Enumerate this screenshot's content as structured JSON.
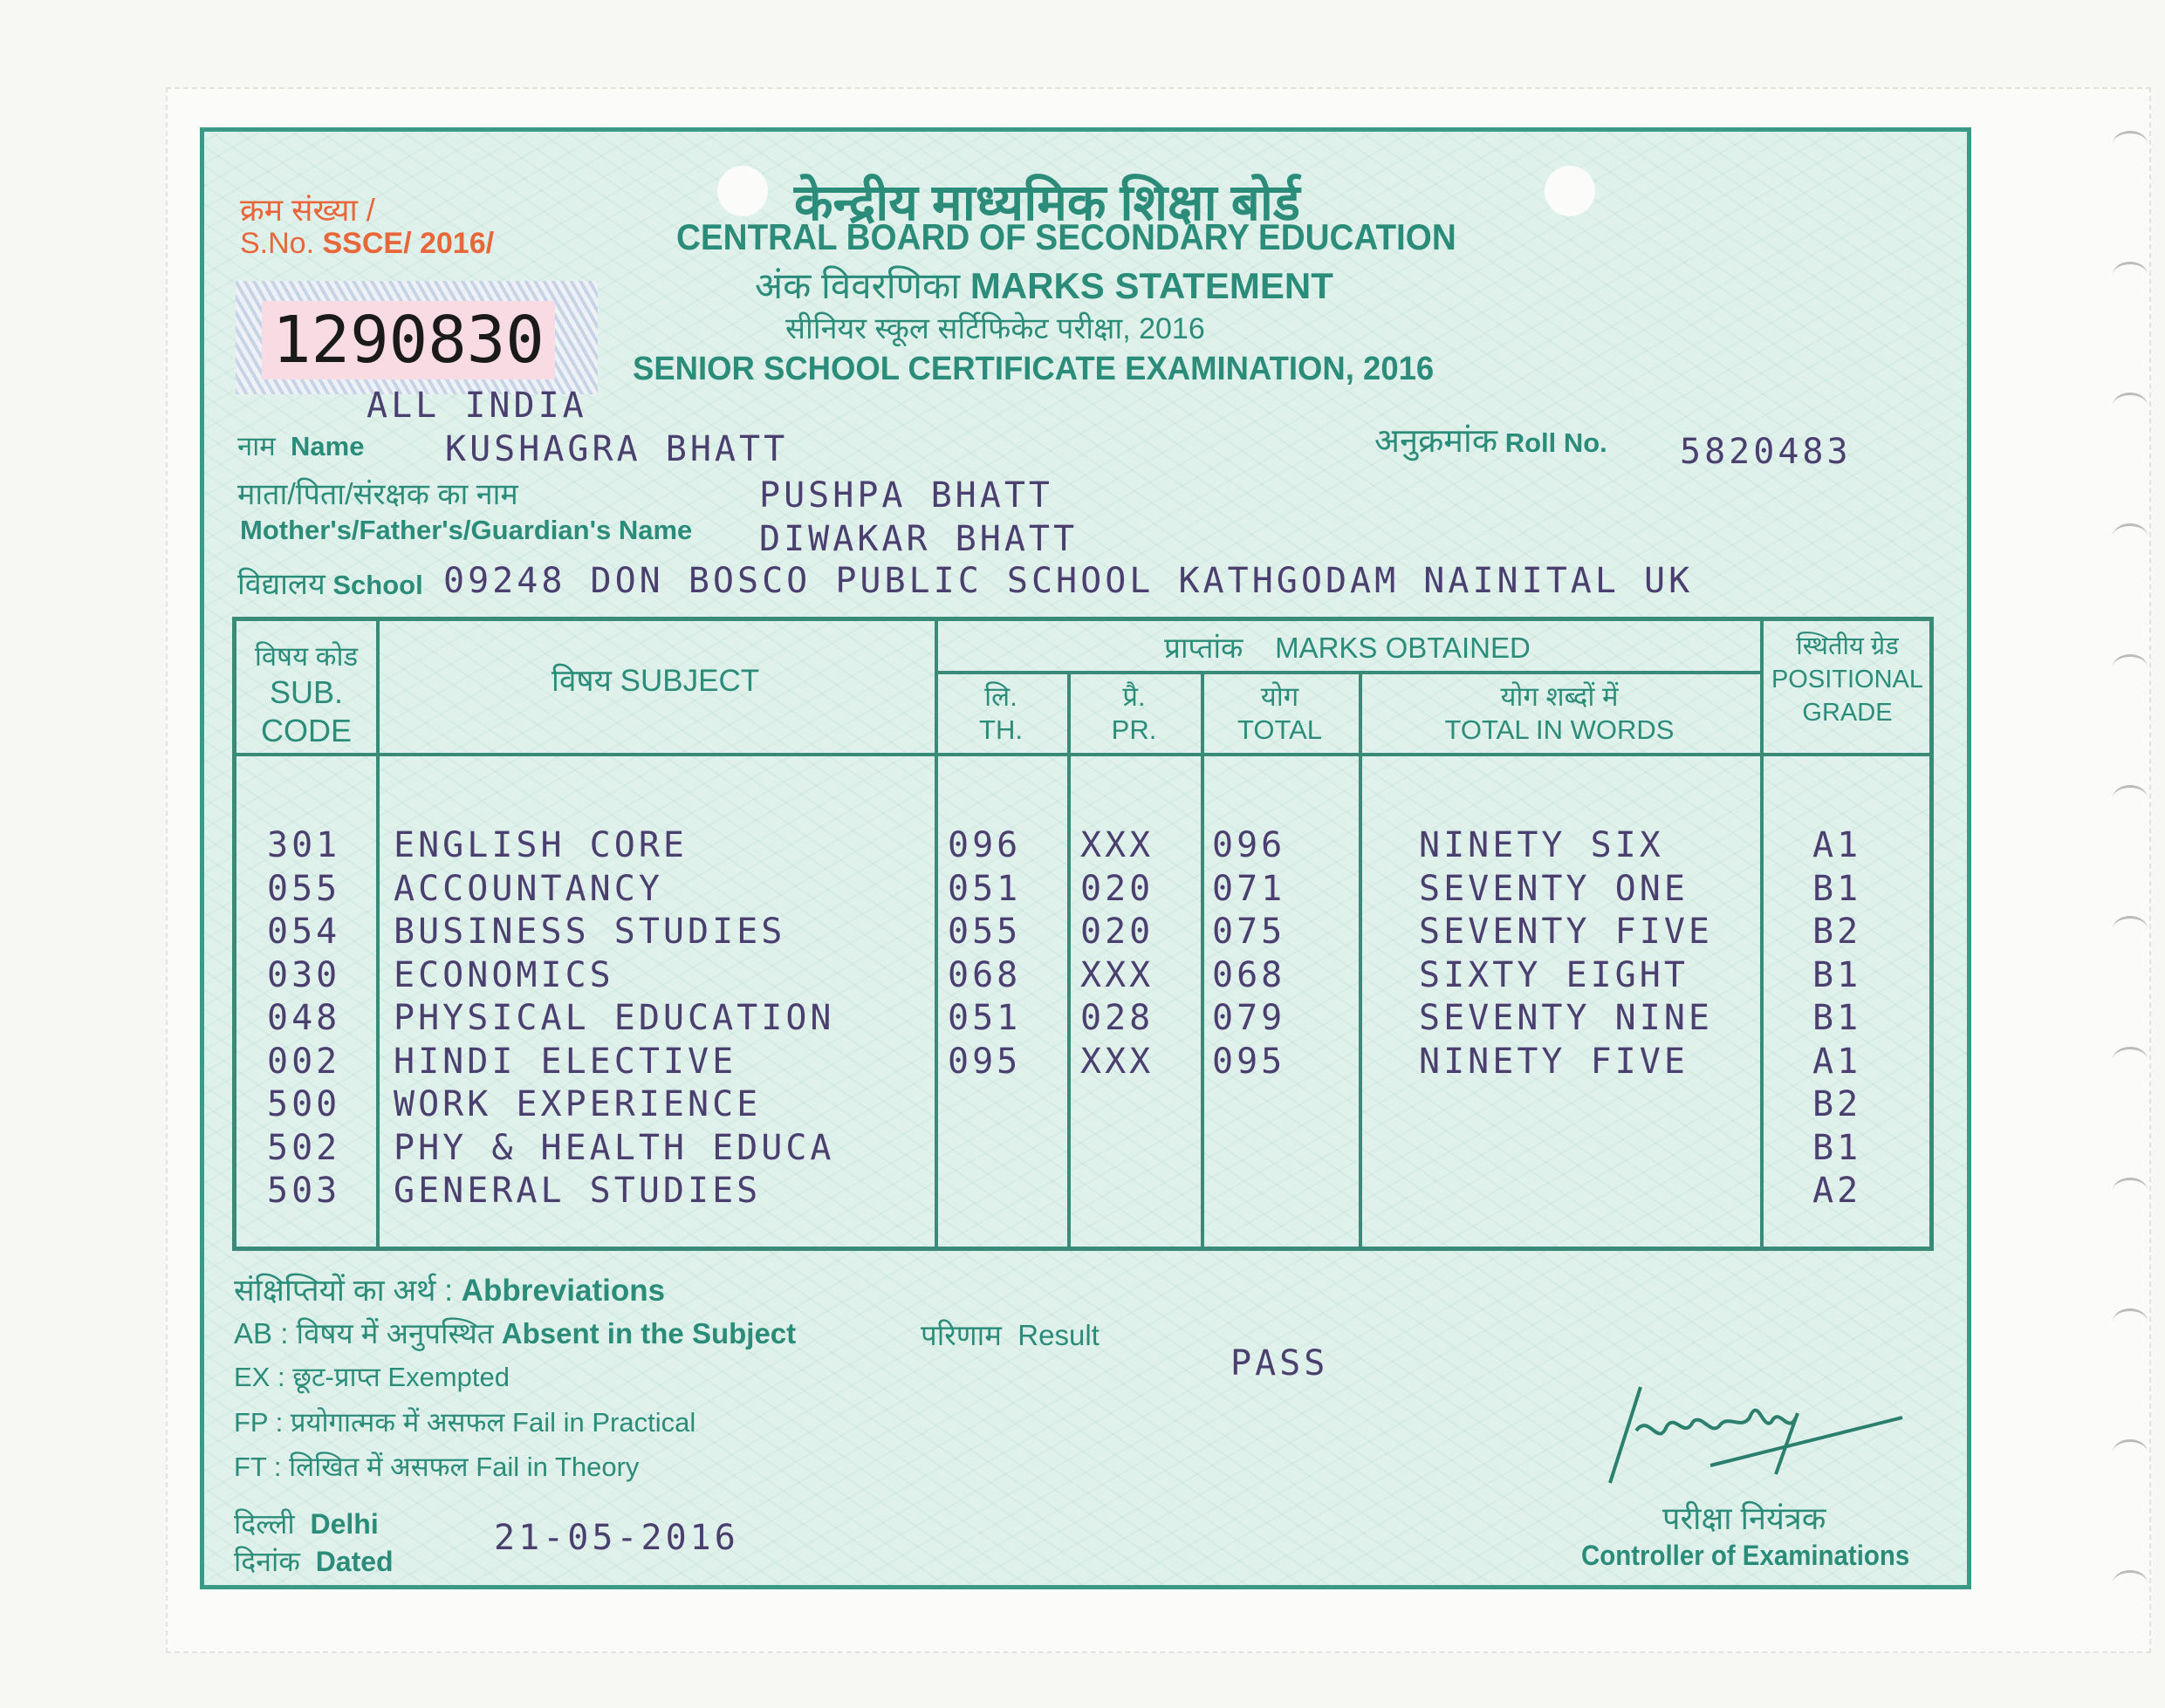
{
  "serial": {
    "label_hi": "क्रम संख्या /",
    "label_en": "S.No.",
    "prefix": "SSCE/ 2016/",
    "number": "1290830",
    "region": "ALL INDIA"
  },
  "header": {
    "board_hi": "केन्द्रीय माध्यमिक शिक्षा बोर्ड",
    "board_en": "CENTRAL BOARD OF SECONDARY EDUCATION",
    "title_hi": "अंक विवरणिका",
    "title_en": "MARKS STATEMENT",
    "exam_hi": "सीनियर स्कूल सर्टिफिकेट परीक्षा, 2016",
    "exam_en": "SENIOR SCHOOL CERTIFICATE EXAMINATION, 2016"
  },
  "student": {
    "name_label_hi": "नाम",
    "name_label_en": "Name",
    "name": "KUSHAGRA BHATT",
    "roll_label_hi": "अनुक्रमांक",
    "roll_label_en": "Roll No.",
    "roll": "5820483",
    "parent_label_hi": "माता/पिता/संरक्षक का नाम",
    "parent_label_en": "Mother's/Father's/Guardian's Name",
    "mother": "PUSHPA BHATT",
    "father": "DIWAKAR BHATT",
    "school_label_hi": "विद्यालय",
    "school_label_en": "School",
    "school": "09248 DON BOSCO PUBLIC SCHOOL KATHGODAM NAINITAL UK"
  },
  "table": {
    "headers": {
      "code_hi": "विषय कोड",
      "code_en1": "SUB.",
      "code_en2": "CODE",
      "subject": "विषय SUBJECT",
      "marks_hi": "प्राप्तांक",
      "marks_en": "MARKS OBTAINED",
      "th_hi": "लि.",
      "th_en": "TH.",
      "pr_hi": "प्रै.",
      "pr_en": "PR.",
      "total_hi": "योग",
      "total_en": "TOTAL",
      "words_hi": "योग शब्दों में",
      "words_en": "TOTAL IN WORDS",
      "grade_hi": "स्थितीय ग्रेड",
      "grade_en1": "POSITIONAL",
      "grade_en2": "GRADE"
    },
    "rows": [
      {
        "code": "301",
        "subject": "ENGLISH CORE",
        "th": "096",
        "pr": "XXX",
        "total": "096",
        "words": "NINETY SIX",
        "grade": "A1"
      },
      {
        "code": "055",
        "subject": "ACCOUNTANCY",
        "th": "051",
        "pr": "020",
        "total": "071",
        "words": "SEVENTY ONE",
        "grade": "B1"
      },
      {
        "code": "054",
        "subject": "BUSINESS STUDIES",
        "th": "055",
        "pr": "020",
        "total": "075",
        "words": "SEVENTY FIVE",
        "grade": "B2"
      },
      {
        "code": "030",
        "subject": "ECONOMICS",
        "th": "068",
        "pr": "XXX",
        "total": "068",
        "words": "SIXTY EIGHT",
        "grade": "B1"
      },
      {
        "code": "048",
        "subject": "PHYSICAL EDUCATION",
        "th": "051",
        "pr": "028",
        "total": "079",
        "words": "SEVENTY NINE",
        "grade": "B1"
      },
      {
        "code": "002",
        "subject": "HINDI ELECTIVE",
        "th": "095",
        "pr": "XXX",
        "total": "095",
        "words": "NINETY FIVE",
        "grade": "A1"
      },
      {
        "code": "500",
        "subject": "WORK EXPERIENCE",
        "th": "",
        "pr": "",
        "total": "",
        "words": "",
        "grade": "B2"
      },
      {
        "code": "502",
        "subject": "PHY & HEALTH EDUCA",
        "th": "",
        "pr": "",
        "total": "",
        "words": "",
        "grade": "B1"
      },
      {
        "code": "503",
        "subject": "GENERAL STUDIES",
        "th": "",
        "pr": "",
        "total": "",
        "words": "",
        "grade": "A2"
      }
    ]
  },
  "abbreviations": {
    "title_hi": "संक्षिप्तियों का अर्थ :",
    "title_en": "Abbreviations",
    "ab": "AB : विषय में अनुपस्थित",
    "ab_en": "Absent in the Subject",
    "ex": "EX : छूट-प्राप्त",
    "ex_en": "Exempted",
    "fp": "FP : प्रयोगात्मक में असफल",
    "fp_en": "Fail in Practical",
    "ft": "FT : लिखित में असफल",
    "ft_en": "Fail in Theory"
  },
  "result": {
    "label_hi": "परिणाम",
    "label_en": "Result",
    "value": "PASS"
  },
  "footer": {
    "place_hi": "दिल्ली",
    "place_en": "Delhi",
    "dated_hi": "दिनांक",
    "dated_en": "Dated",
    "date": "21-05-2016",
    "controller_hi": "परीक्षा नियंत्रक",
    "controller_en": "Controller of Examinations"
  },
  "colors": {
    "frame": "#3a9a86",
    "text_green": "#2b8c79",
    "serial_orange": "#e8673a",
    "typed": "#4a3f6e",
    "background": "#e0f1eb"
  }
}
